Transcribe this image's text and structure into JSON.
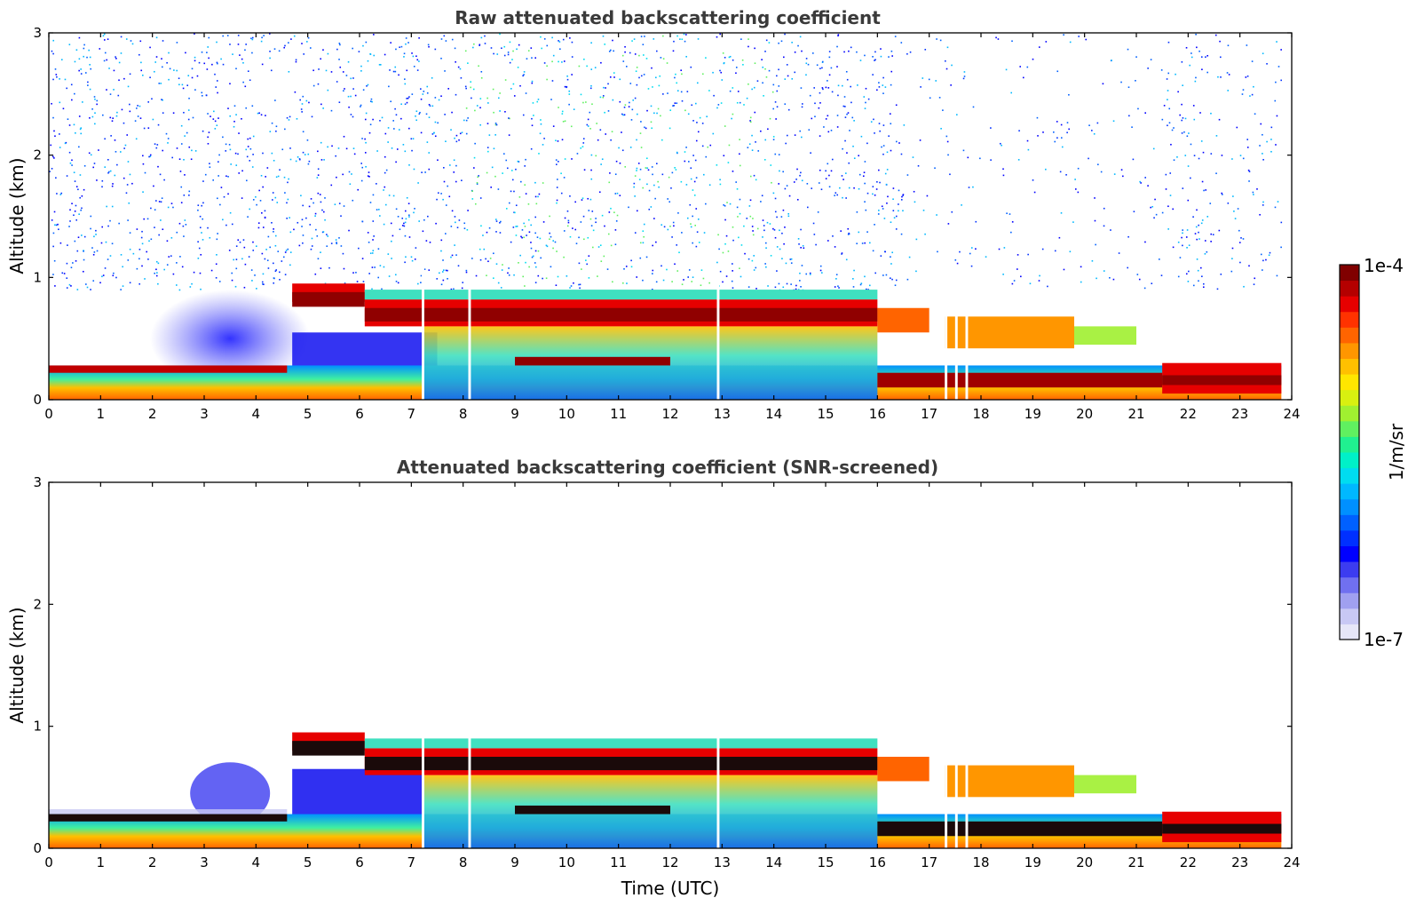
{
  "chart_data": [
    {
      "type": "heatmap",
      "title": "Raw attenuated backscattering coefficient",
      "xlabel": "",
      "ylabel": "Altitude (km)",
      "xlim": [
        0,
        24
      ],
      "ylim": [
        0,
        3
      ],
      "x_ticks": [
        "0",
        "1",
        "2",
        "3",
        "4",
        "5",
        "6",
        "7",
        "8",
        "9",
        "10",
        "11",
        "12",
        "13",
        "14",
        "15",
        "16",
        "17",
        "18",
        "19",
        "20",
        "21",
        "22",
        "23",
        "24"
      ],
      "y_ticks": [
        "0",
        "1",
        "2",
        "3"
      ],
      "features": [
        {
          "name": "surface layer",
          "time_range": [
            0,
            24
          ],
          "altitude_range": [
            0,
            0.3
          ]
        },
        {
          "name": "elevated aerosol layer",
          "time_range": [
            4.7,
            16.5
          ],
          "altitude_range": [
            0.55,
            0.95
          ]
        },
        {
          "name": "residual layer",
          "time_range": [
            17,
            19.8
          ],
          "altitude_range": [
            0.4,
            0.7
          ]
        },
        {
          "name": "low layer",
          "time_range": [
            16,
            23.8
          ],
          "altitude_range": [
            0.1,
            0.25
          ]
        }
      ]
    },
    {
      "type": "heatmap",
      "title": "Attenuated backscattering coefficient (SNR-screened)",
      "xlabel": "Time (UTC)",
      "ylabel": "Altitude (km)",
      "xlim": [
        0,
        24
      ],
      "ylim": [
        0,
        3
      ],
      "x_ticks": [
        "0",
        "1",
        "2",
        "3",
        "4",
        "5",
        "6",
        "7",
        "8",
        "9",
        "10",
        "11",
        "12",
        "13",
        "14",
        "15",
        "16",
        "17",
        "18",
        "19",
        "20",
        "21",
        "22",
        "23",
        "24"
      ],
      "y_ticks": [
        "0",
        "1",
        "2",
        "3"
      ]
    }
  ],
  "colorbar": {
    "label": "1/m/sr",
    "max_label": "1e-4",
    "min_label": "1e-7",
    "colors": [
      "#e6e6f8",
      "#c8c8f4",
      "#a0a0f0",
      "#7070f0",
      "#3c3cf0",
      "#0000ff",
      "#0030ff",
      "#0060ff",
      "#0090ff",
      "#00b8ff",
      "#00dcf0",
      "#00f0c8",
      "#20f090",
      "#60f060",
      "#a0f030",
      "#d8f010",
      "#ffe600",
      "#ffc000",
      "#ff9600",
      "#ff6400",
      "#ff3200",
      "#e60000",
      "#b40000",
      "#800000"
    ]
  }
}
